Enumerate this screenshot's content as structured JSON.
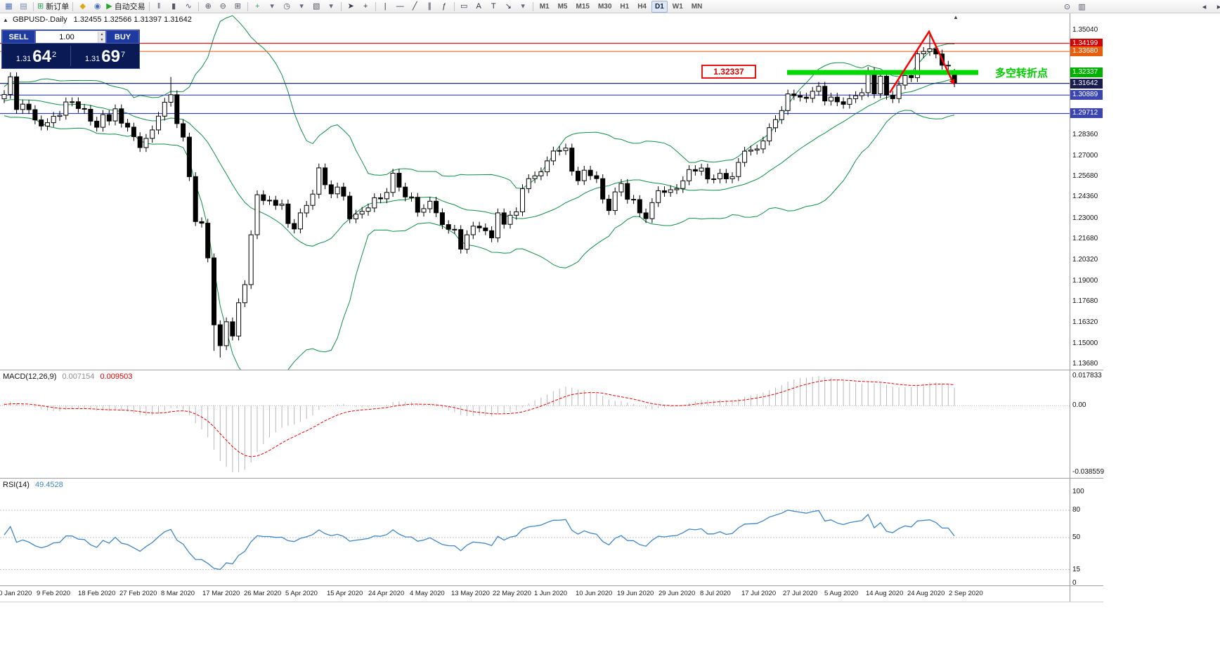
{
  "toolbar": {
    "items": [
      {
        "name": "charts-window-icon",
        "glyph": "▦",
        "color": "#4a6fb5"
      },
      {
        "name": "profiles-icon",
        "glyph": "▤",
        "color": "#7a8aa5"
      },
      {
        "type": "sep"
      },
      {
        "name": "new-order-button",
        "glyph": "⊞",
        "color": "#2f9e4f",
        "label": "新订单"
      },
      {
        "type": "sep"
      },
      {
        "name": "metaeditor-icon",
        "glyph": "◆",
        "color": "#dba818"
      },
      {
        "name": "navigator-icon",
        "glyph": "◉",
        "color": "#4a6fb5"
      },
      {
        "name": "autotrading-button",
        "glyph": "▶",
        "color": "#27a52f",
        "label": "自动交易"
      },
      {
        "type": "sep"
      },
      {
        "name": "bar-chart-icon",
        "glyph": "‖",
        "color": "#556"
      },
      {
        "name": "candlestick-chart-icon",
        "glyph": "▮",
        "color": "#556"
      },
      {
        "name": "line-chart-icon",
        "glyph": "∿",
        "color": "#556"
      },
      {
        "type": "sep"
      },
      {
        "name": "zoom-in-icon",
        "glyph": "⊕",
        "color": "#556"
      },
      {
        "name": "zoom-out-icon",
        "glyph": "⊖",
        "color": "#556"
      },
      {
        "name": "tile-windows-icon",
        "glyph": "⊞",
        "color": "#556"
      },
      {
        "type": "sep"
      },
      {
        "name": "indicators-icon",
        "glyph": "+",
        "color": "#2f9e4f"
      },
      {
        "name": "indicators-dropdown-icon",
        "glyph": "▾",
        "color": "#667"
      },
      {
        "name": "periods-icon",
        "glyph": "◷",
        "color": "#556"
      },
      {
        "name": "periods-dropdown-icon",
        "glyph": "▾",
        "color": "#667"
      },
      {
        "name": "templates-icon",
        "glyph": "▧",
        "color": "#556"
      },
      {
        "name": "templates-dropdown-icon",
        "glyph": "▾",
        "color": "#667"
      },
      {
        "type": "sep"
      },
      {
        "name": "cursor-icon",
        "glyph": "➤",
        "color": "#334"
      },
      {
        "name": "crosshair-icon",
        "glyph": "+",
        "color": "#334"
      },
      {
        "type": "sep"
      },
      {
        "name": "vertical-line-icon",
        "glyph": "|",
        "color": "#334"
      },
      {
        "name": "horizontal-line-icon",
        "glyph": "―",
        "color": "#334"
      },
      {
        "name": "trendline-icon",
        "glyph": "╱",
        "color": "#334"
      },
      {
        "name": "channel-icon",
        "glyph": "∥",
        "color": "#334"
      },
      {
        "name": "fibonacci-icon",
        "glyph": "ƒ",
        "color": "#334"
      },
      {
        "type": "sep"
      },
      {
        "name": "shapes-icon",
        "glyph": "▭",
        "color": "#334"
      },
      {
        "name": "text-icon",
        "glyph": "A",
        "color": "#334"
      },
      {
        "name": "label-icon",
        "glyph": "T",
        "color": "#334"
      },
      {
        "name": "arrows-icon",
        "glyph": "↘",
        "color": "#334"
      },
      {
        "name": "arrows-dropdown-icon",
        "glyph": "▾",
        "color": "#667"
      },
      {
        "type": "sep"
      }
    ],
    "timeframes": [
      "M1",
      "M5",
      "M15",
      "M30",
      "H1",
      "H4",
      "D1",
      "W1",
      "MN"
    ],
    "active_timeframe": "D1",
    "right_icons": [
      {
        "name": "search-icon",
        "glyph": "⊙"
      },
      {
        "name": "layout-icon",
        "glyph": "▥"
      }
    ],
    "corner_icons": [
      {
        "name": "scroll-left-icon",
        "glyph": "◂"
      },
      {
        "name": "scroll-right-icon",
        "glyph": "▸"
      }
    ]
  },
  "chart": {
    "title_symbol": "GBPUSD-.Daily",
    "title_ohlc": "1.32455 1.32566 1.31397 1.31642",
    "trade_panel": {
      "sell_label": "SELL",
      "buy_label": "BUY",
      "volume": "1.00",
      "sell_price_prefix": "1.31",
      "sell_price_big": "64",
      "sell_price_sup": "2",
      "buy_price_prefix": "1.31",
      "buy_price_big": "69",
      "buy_price_sup": "7"
    },
    "annotations": {
      "level_label": "1.32337",
      "note_text": "多空转折点",
      "note_color": "#00cc00",
      "arrow_color": "#ff0000"
    },
    "levels": [
      {
        "price": 1.34199,
        "label": "1.34199",
        "color": "#e00000",
        "badge": "#d20000"
      },
      {
        "price": 1.3368,
        "label": "1.33680",
        "color": "#f26522",
        "badge": "#e85d0c"
      },
      {
        "price": 1.32337,
        "label": "1.32337",
        "color": "#00d800",
        "badge": "#00b000",
        "segment": true
      },
      {
        "price": 1.31642,
        "label": "1.31642",
        "color": "#1c2d6b",
        "badge": "#191d4e"
      },
      {
        "price": 1.30889,
        "label": "1.30889",
        "color": "#3a45b0",
        "badge": "#3a45b0"
      },
      {
        "price": 1.29712,
        "label": "1.29712",
        "color": "#3a45b0",
        "badge": "#3a45b0"
      }
    ],
    "y_ticks": [
      "1.35040",
      "1.33680",
      "1.32320",
      "1.30960",
      "1.29600",
      "1.28360",
      "1.27000",
      "1.25680",
      "1.24360",
      "1.23000",
      "1.21680",
      "1.20320",
      "1.19000",
      "1.17680",
      "1.16320",
      "1.15000",
      "1.13680"
    ],
    "x_labels": [
      "30 Jan 2020",
      "9 Feb 2020",
      "18 Feb 2020",
      "27 Feb 2020",
      "8 Mar 2020",
      "17 Mar 2020",
      "26 Mar 2020",
      "5 Apr 2020",
      "15 Apr 2020",
      "24 Apr 2020",
      "4 May 2020",
      "13 May 2020",
      "22 May 2020",
      "1 Jun 2020",
      "10 Jun 2020",
      "19 Jun 2020",
      "29 Jun 2020",
      "8 Jul 2020",
      "17 Jul 2020",
      "27 Jul 2020",
      "5 Aug 2020",
      "14 Aug 2020",
      "24 Aug 2020",
      "2 Sep 2020"
    ]
  },
  "macd": {
    "name": "MACD(12,26,9)",
    "value_main": "0.007154",
    "value_signal": "0.009503",
    "axis_max": "0.017833",
    "axis_zero": "0.00",
    "axis_min": "-0.038559",
    "histogram_color": "#b8b8b8",
    "signal_color": "#ee0000"
  },
  "rsi": {
    "name": "RSI(14)",
    "value": "49.4528",
    "axis": [
      "100",
      "80",
      "50",
      "15",
      "0"
    ],
    "levels": [
      80,
      50,
      15
    ],
    "line_color": "#3f86c8"
  },
  "chart_data": {
    "type": "candlestick",
    "symbol": "GBPUSD-",
    "period": "Daily",
    "overlays": [
      "bollinger-bands",
      "macd",
      "rsi"
    ],
    "band_color": "#0f8f46",
    "price_top_tick": 1.3504,
    "price_bottom_tick": 1.1368,
    "current_price": 1.31642,
    "seed_closes": [
      1.3048,
      1.3012,
      1.299,
      1.306,
      1.3025,
      1.2966,
      1.3005,
      1.308,
      1.311,
      1.3095,
      1.304,
      1.3003,
      1.2985,
      1.302,
      1.3047,
      1.3078,
      1.3102,
      1.3136,
      1.309,
      1.3065
    ],
    "closes": [
      1.3093,
      1.3206,
      1.2997,
      1.3031,
      1.2996,
      1.293,
      1.2891,
      1.2912,
      1.2953,
      1.296,
      1.3045,
      1.3046,
      1.3003,
      1.2998,
      1.2922,
      1.2883,
      1.2964,
      1.2923,
      1.3001,
      1.2909,
      1.2884,
      1.2823,
      1.2753,
      1.2812,
      1.2866,
      1.2954,
      1.3043,
      1.3091,
      1.2906,
      1.282,
      1.2567,
      1.2279,
      1.2269,
      1.2047,
      1.1619,
      1.1485,
      1.1638,
      1.1547,
      1.176,
      1.1876,
      1.2195,
      1.2451,
      1.2414,
      1.2416,
      1.2383,
      1.2392,
      1.2267,
      1.2232,
      1.2335,
      1.2383,
      1.2455,
      1.2623,
      1.2515,
      1.2457,
      1.25,
      1.2442,
      1.2297,
      1.2327,
      1.2345,
      1.2367,
      1.2432,
      1.2425,
      1.2466,
      1.2589,
      1.25,
      1.2437,
      1.2435,
      1.2339,
      1.2362,
      1.241,
      1.2336,
      1.226,
      1.223,
      1.2228,
      1.2103,
      1.2195,
      1.225,
      1.2239,
      1.2221,
      1.2175,
      1.2335,
      1.2262,
      1.232,
      1.2342,
      1.249,
      1.2554,
      1.2572,
      1.2598,
      1.2668,
      1.2731,
      1.2734,
      1.275,
      1.2602,
      1.2541,
      1.2608,
      1.2573,
      1.2554,
      1.2423,
      1.235,
      1.2469,
      1.2523,
      1.2422,
      1.242,
      1.2335,
      1.2298,
      1.2401,
      1.2477,
      1.2466,
      1.2483,
      1.2491,
      1.254,
      1.2612,
      1.2602,
      1.2622,
      1.2552,
      1.2553,
      1.2588,
      1.2553,
      1.2567,
      1.2658,
      1.273,
      1.2737,
      1.2744,
      1.2795,
      1.288,
      1.2932,
      1.299,
      1.3096,
      1.3085,
      1.3076,
      1.3068,
      1.3113,
      1.3145,
      1.3051,
      1.3076,
      1.3046,
      1.303,
      1.3066,
      1.3085,
      1.3104,
      1.324,
      1.3097,
      1.321,
      1.3088,
      1.3066,
      1.3153,
      1.3214,
      1.32,
      1.3353,
      1.3368,
      1.3385,
      1.3352,
      1.328,
      1.3279,
      1.31642
    ],
    "overrides": {
      "27": {
        "h": 1.3205
      },
      "34": {
        "l": 1.1452
      },
      "35": {
        "l": 1.1409
      },
      "150": {
        "h": 1.3483
      },
      "154": {
        "o": 1.32455,
        "h": 1.32566,
        "l": 1.31397
      }
    }
  }
}
